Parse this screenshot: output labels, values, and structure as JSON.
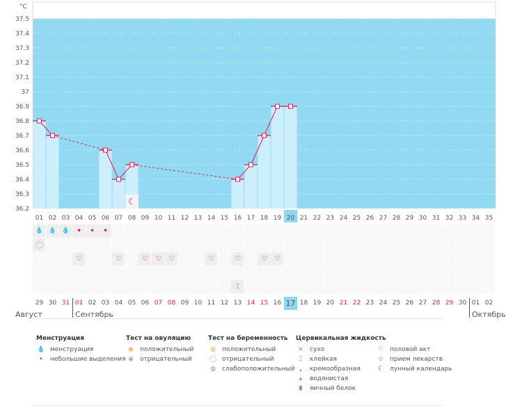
{
  "chart_data": {
    "type": "bar",
    "ylabel": "°C",
    "ylim": [
      36.2,
      37.5
    ],
    "yticks": [
      "37.5",
      "37.4",
      "37.3",
      "37.2",
      "37.1",
      "37",
      "36.9",
      "36.8",
      "36.7",
      "36.6",
      "36.5",
      "36.4",
      "36.3",
      "36.2"
    ],
    "cycle_days": [
      "01",
      "02",
      "03",
      "04",
      "05",
      "06",
      "07",
      "08",
      "09",
      "10",
      "11",
      "12",
      "13",
      "14",
      "15",
      "16",
      "17",
      "18",
      "19",
      "20",
      "21",
      "22",
      "23",
      "24",
      "25",
      "26",
      "27",
      "28",
      "29",
      "30",
      "31",
      "32",
      "33",
      "34",
      "35"
    ],
    "highlight_day": "20",
    "series": [
      {
        "points": [
          [
            1,
            36.8
          ],
          [
            2,
            36.7
          ],
          [
            6,
            36.6
          ],
          [
            7,
            36.4
          ],
          [
            8,
            36.5
          ],
          [
            16,
            36.4
          ],
          [
            17,
            36.5
          ],
          [
            18,
            36.7
          ],
          [
            19,
            36.9
          ],
          [
            20,
            36.9
          ]
        ]
      }
    ],
    "moon_day": 8,
    "grid": true,
    "colors": {
      "background": "#92d9f3",
      "bar": "#cdeefc",
      "line": "#e8195a",
      "highlight": "#8fd6f0"
    }
  },
  "dates": [
    "29",
    "30",
    "31",
    "01",
    "02",
    "03",
    "04",
    "05",
    "06",
    "07",
    "08",
    "09",
    "10",
    "11",
    "12",
    "13",
    "14",
    "15",
    "16",
    "17",
    "18",
    "19",
    "20",
    "21",
    "22",
    "23",
    "24",
    "25",
    "26",
    "27",
    "28",
    "29",
    "30",
    "01",
    "02"
  ],
  "red_dates": [
    3,
    4,
    10,
    11,
    17,
    18,
    24,
    25,
    31,
    32
  ],
  "months": [
    {
      "label": "Август",
      "col": 0
    },
    {
      "label": "Сентябрь",
      "col": 3
    },
    {
      "label": "Октябрь",
      "col": 33
    }
  ],
  "rows": {
    "menstruation_heavy": [
      1,
      2,
      3
    ],
    "menstruation_light": [
      4,
      5,
      6
    ],
    "pregnancy_negative": [
      1
    ],
    "intercourse": [
      4,
      7,
      9,
      10,
      11,
      14,
      16,
      18,
      19
    ],
    "cervical_sticky": [
      16
    ]
  },
  "legend": [
    {
      "title": "Менструация",
      "items": [
        {
          "icon": "drops-icon",
          "label": "менструация"
        },
        {
          "icon": "drop-small-icon",
          "label": "небольшие выделения"
        }
      ]
    },
    {
      "title": "Тест на овуляцию",
      "items": [
        {
          "icon": "circle-orange-icon",
          "label": "положительный"
        },
        {
          "icon": "circle-gray-icon",
          "label": "отрицательный"
        }
      ]
    },
    {
      "title": "Тест на беременность",
      "items": [
        {
          "icon": "pregnancy-positive-icon",
          "label": "положительный"
        },
        {
          "icon": "pregnancy-negative-icon",
          "label": "отрицательный"
        },
        {
          "icon": "pregnancy-weak-icon",
          "label": "слабоположительный"
        }
      ]
    },
    {
      "title": "Цервикальная жидкость",
      "items": [
        {
          "icon": "cross-icon",
          "label": "сухо"
        },
        {
          "icon": "sticky-icon",
          "label": "клейкая"
        },
        {
          "icon": "creamy-icon",
          "label": "кремообразная"
        },
        {
          "icon": "watery-icon",
          "label": "водянистая"
        },
        {
          "icon": "egg-white-icon",
          "label": "яичный белок"
        }
      ]
    },
    {
      "title": "",
      "items": [
        {
          "icon": "heart-icon",
          "label": "половой акт"
        },
        {
          "icon": "pill-icon",
          "label": "прием лекарств"
        },
        {
          "icon": "moon-icon",
          "label": "лунный календарь"
        }
      ]
    }
  ]
}
